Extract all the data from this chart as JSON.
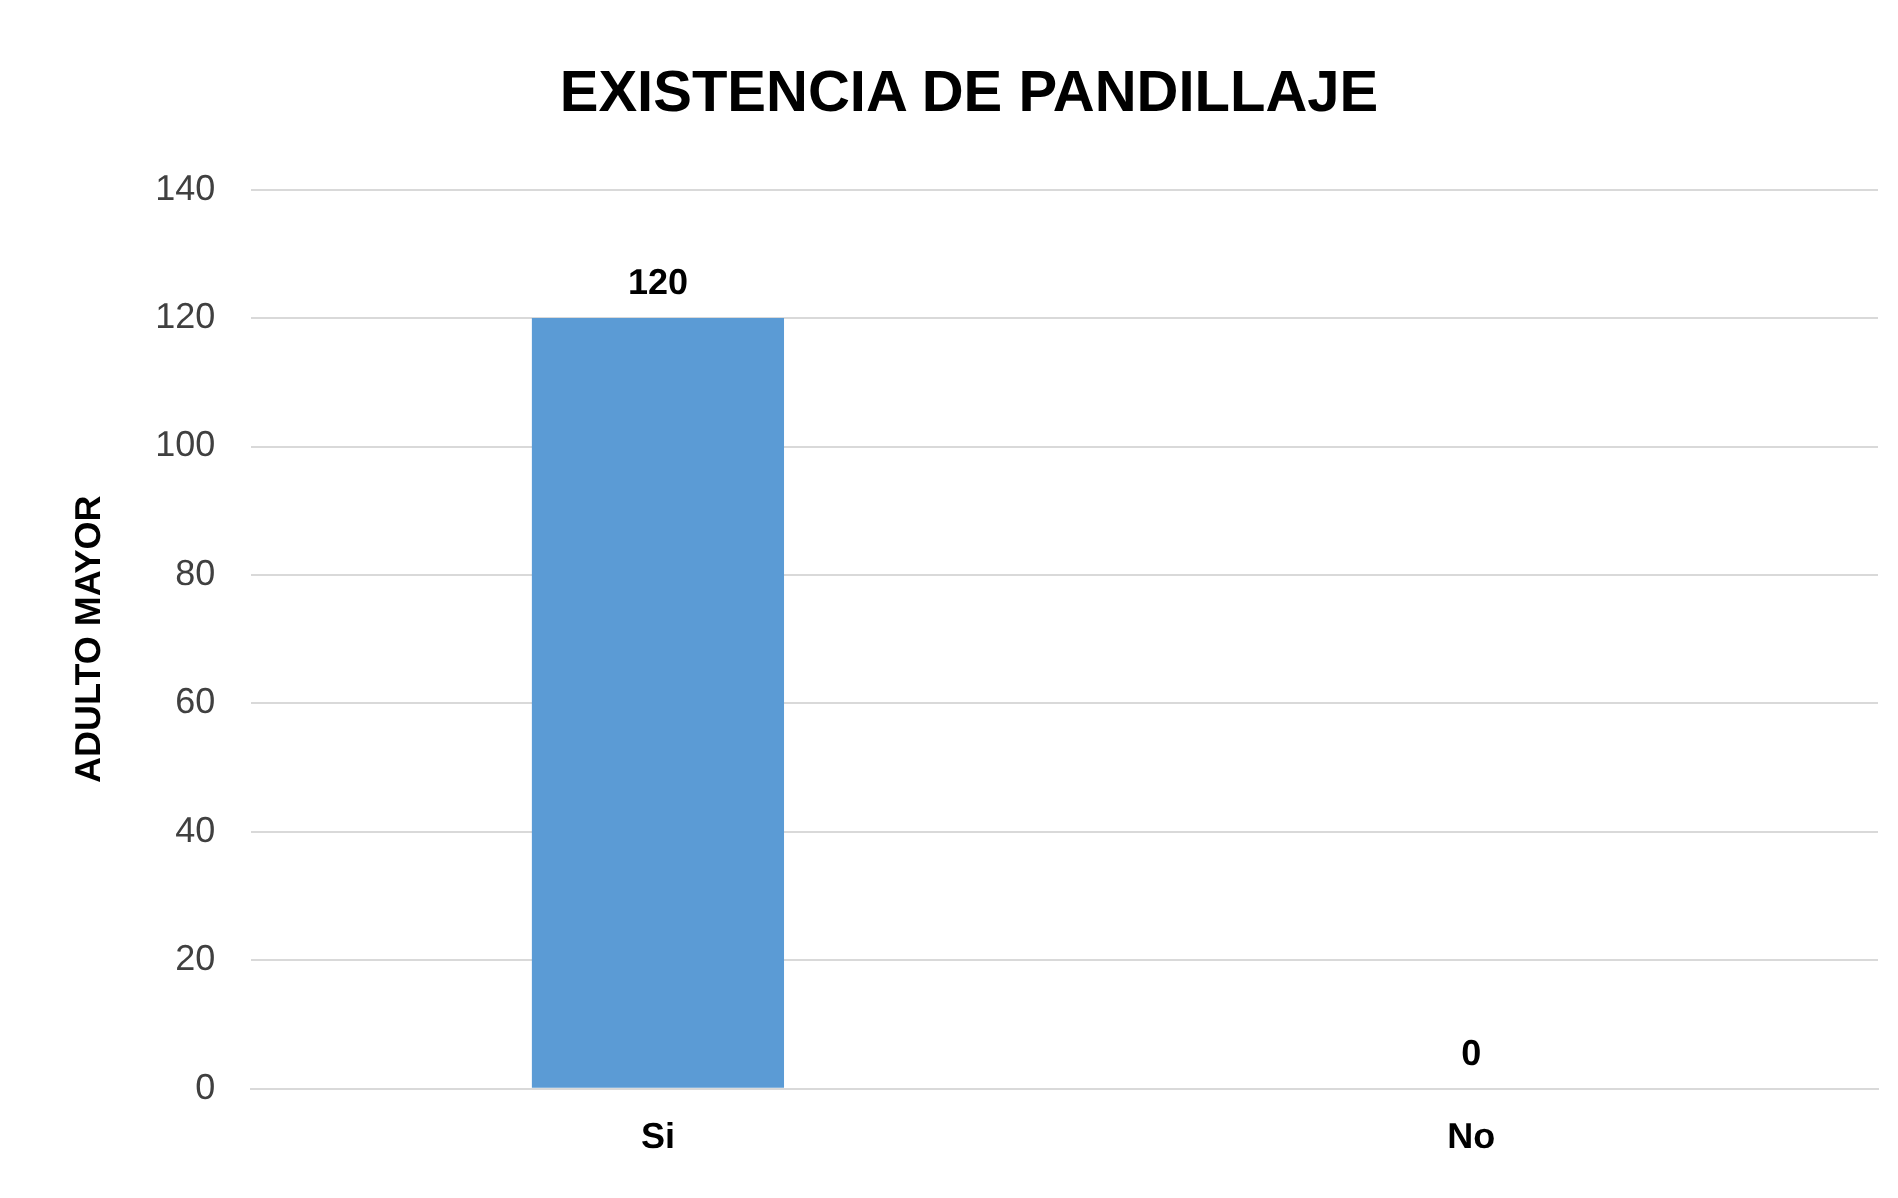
{
  "chart_data": {
    "type": "bar",
    "title": "EXISTENCIA DE PANDILLAJE",
    "ylabel": "ADULTO MAYOR",
    "categories": [
      "Si",
      "No"
    ],
    "values": [
      120,
      0
    ],
    "color": "#5b9bd5",
    "ylim": [
      0,
      140
    ],
    "yticks": [
      0,
      20,
      40,
      60,
      80,
      100,
      120,
      140
    ],
    "grid": "y",
    "data_labels": true,
    "legend": false
  }
}
